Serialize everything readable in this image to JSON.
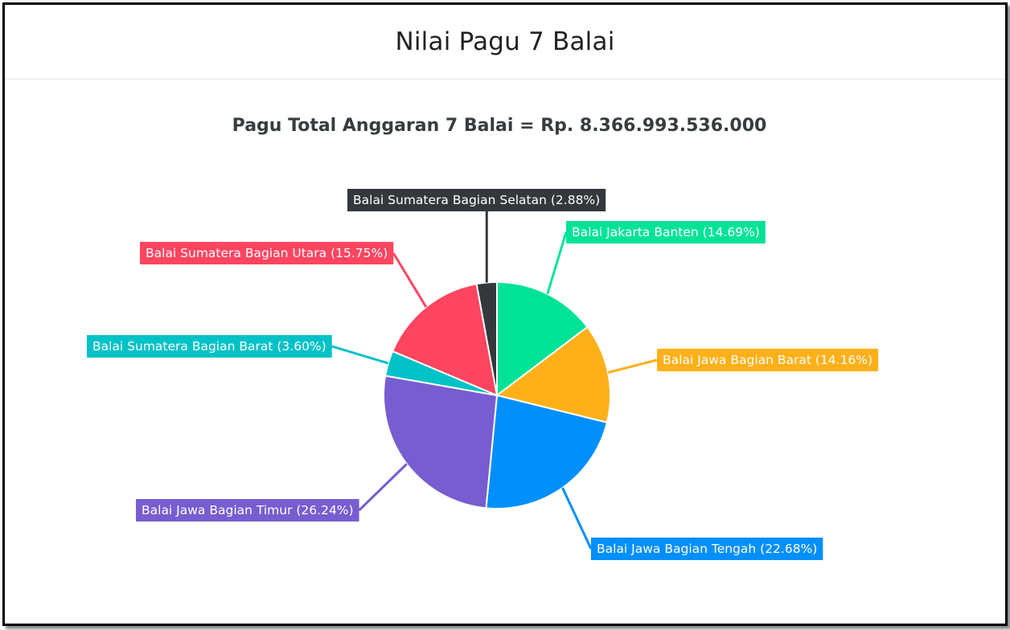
{
  "card": {
    "title": "Nilai Pagu 7 Balai"
  },
  "chart_data": {
    "type": "pie",
    "title": "",
    "subtitle": "Pagu Total Anggaran 7 Balai = Rp. 8.366.993.536.000",
    "start_angle": "12 o'clock, clockwise",
    "slices": [
      {
        "name": "Balai Jakarta Banten",
        "value": 14.69,
        "label": "Balai Jakarta Banten (14.69%)",
        "color": "#00e396"
      },
      {
        "name": "Balai Jawa Bagian Barat",
        "value": 14.16,
        "label": "Balai Jawa Bagian Barat (14.16%)",
        "color": "#feb019"
      },
      {
        "name": "Balai Jawa Bagian Tengah",
        "value": 22.68,
        "label": "Balai Jawa Bagian Tengah (22.68%)",
        "color": "#008ffb"
      },
      {
        "name": "Balai Jawa Bagian Timur",
        "value": 26.24,
        "label": "Balai Jawa Bagian Timur (26.24%)",
        "color": "#775dd0"
      },
      {
        "name": "Balai Sumatera Bagian Barat",
        "value": 3.6,
        "label": "Balai Sumatera Bagian Barat (3.60%)",
        "color": "#00c2c7"
      },
      {
        "name": "Balai Sumatera Bagian Utara",
        "value": 15.75,
        "label": "Balai Sumatera Bagian Utara (15.75%)",
        "color": "#ff4560"
      },
      {
        "name": "Balai Sumatera Bagian Selatan",
        "value": 2.88,
        "label": "Balai Sumatera Bagian Selatan (2.88%)",
        "color": "#34383c"
      }
    ]
  }
}
